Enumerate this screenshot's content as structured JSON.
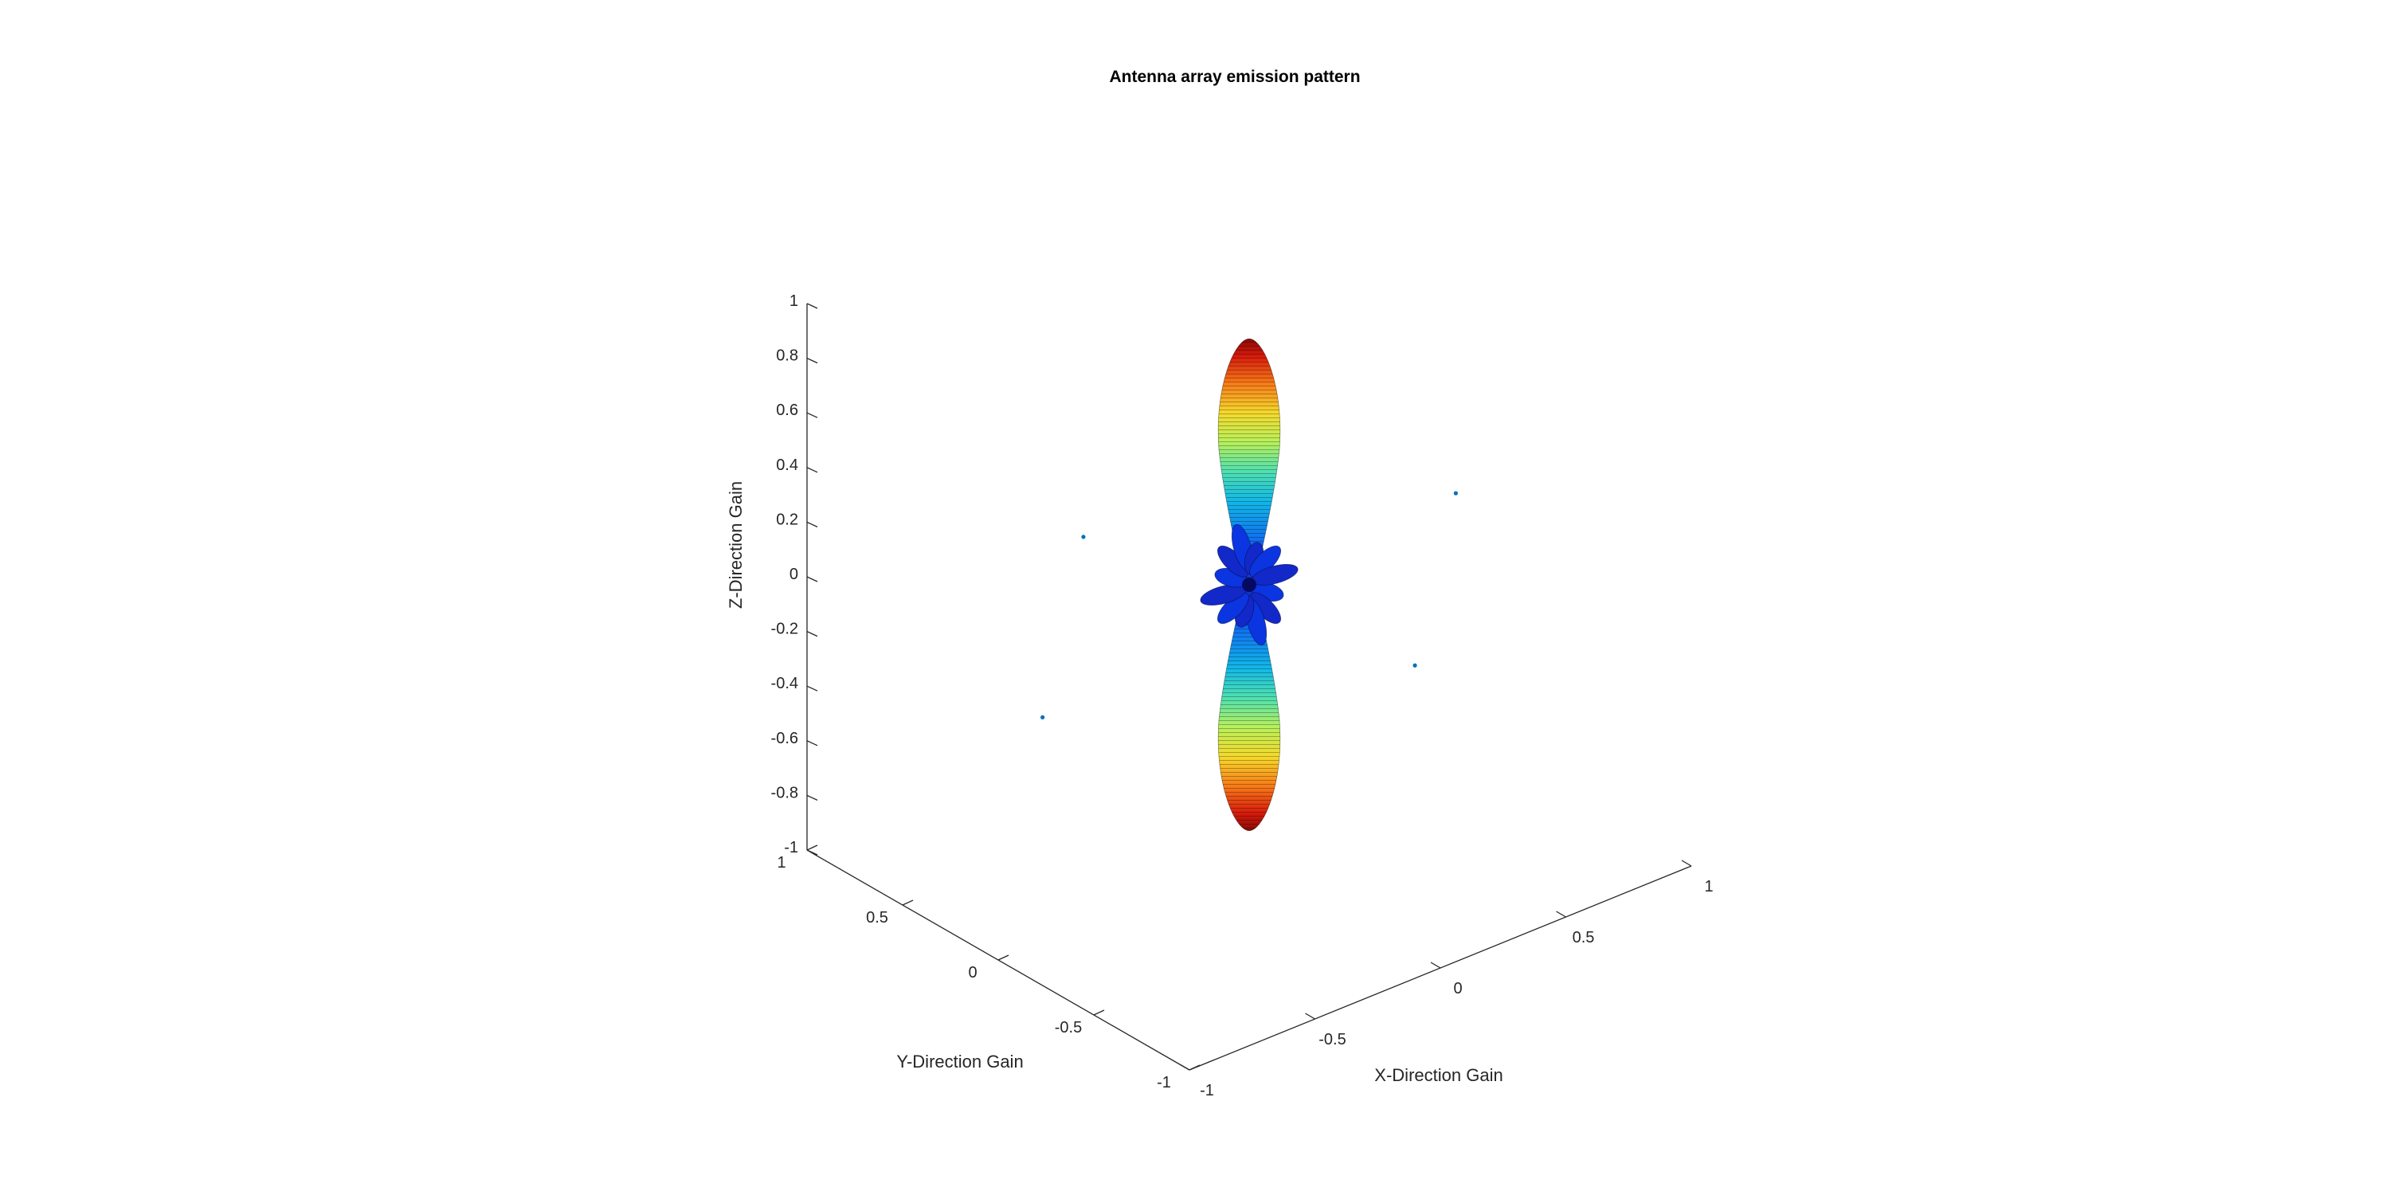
{
  "chart_data": {
    "type": "surface3d",
    "title": "Antenna array emission pattern",
    "xlabel": "X-Direction Gain",
    "ylabel": "Y-Direction Gain",
    "zlabel": "Z-Direction Gain",
    "xlim": [
      -1,
      1
    ],
    "ylim": [
      -1,
      1
    ],
    "zlim": [
      -1,
      1
    ],
    "x_ticks": [
      "-1",
      "-0.5",
      "0",
      "0.5",
      "1"
    ],
    "y_ticks": [
      "-1",
      "-0.5",
      "0",
      "0.5",
      "1"
    ],
    "z_ticks": [
      "-1",
      "-0.8",
      "-0.6",
      "-0.4",
      "-0.2",
      "0",
      "0.2",
      "0.4",
      "0.6",
      "0.8",
      "1"
    ],
    "colormap": "jet",
    "main_lobes": [
      {
        "direction": "+z",
        "peak_gain": 0.9
      },
      {
        "direction": "-z",
        "peak_gain": 0.9
      }
    ],
    "side_lobe_count": 12,
    "element_points": [
      {
        "x": -0.47,
        "y": 0.25,
        "z": 0.25
      },
      {
        "x": 0.61,
        "y": -0.28,
        "z": 0.22
      },
      {
        "x": -0.61,
        "y": 0.28,
        "z": -0.37
      },
      {
        "x": 0.47,
        "y": -0.25,
        "z": -0.37
      }
    ],
    "marker_color": "#0072BD",
    "grid": false
  }
}
